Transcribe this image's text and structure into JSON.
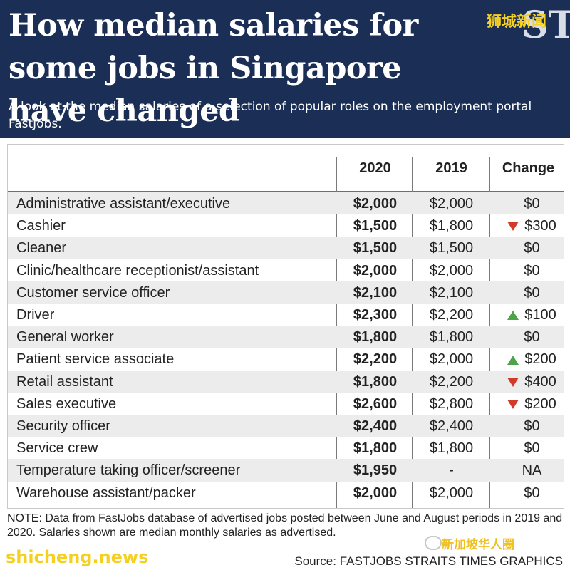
{
  "header": {
    "title": "How median salaries for some jobs in Singapore have changed",
    "subtitle": "A look at the median salaries of a selection of popular roles on the employment portal FastJobs.",
    "logo_text": "ST",
    "watermark_top": "狮城新闻",
    "background_color": "#1b2e55"
  },
  "chart_data": {
    "type": "table",
    "columns": [
      "",
      "2020",
      "2019",
      "Change"
    ],
    "rows": [
      {
        "job": "Administrative assistant/executive",
        "y2020": "$2,000",
        "y2019": "$2,000",
        "change": "$0",
        "direction": "none"
      },
      {
        "job": "Cashier",
        "y2020": "$1,500",
        "y2019": "$1,800",
        "change": "$300",
        "direction": "down"
      },
      {
        "job": "Cleaner",
        "y2020": "$1,500",
        "y2019": "$1,500",
        "change": "$0",
        "direction": "none"
      },
      {
        "job": "Clinic/healthcare receptionist/assistant",
        "y2020": "$2,000",
        "y2019": "$2,000",
        "change": "$0",
        "direction": "none"
      },
      {
        "job": "Customer service officer",
        "y2020": "$2,100",
        "y2019": "$2,100",
        "change": "$0",
        "direction": "none"
      },
      {
        "job": "Driver",
        "y2020": "$2,300",
        "y2019": "$2,200",
        "change": "$100",
        "direction": "up"
      },
      {
        "job": "General worker",
        "y2020": "$1,800",
        "y2019": "$1,800",
        "change": "$0",
        "direction": "none"
      },
      {
        "job": "Patient service associate",
        "y2020": "$2,200",
        "y2019": "$2,000",
        "change": "$200",
        "direction": "up"
      },
      {
        "job": "Retail assistant",
        "y2020": "$1,800",
        "y2019": "$2,200",
        "change": "$400",
        "direction": "down"
      },
      {
        "job": "Sales executive",
        "y2020": "$2,600",
        "y2019": "$2,800",
        "change": "$200",
        "direction": "down"
      },
      {
        "job": "Security officer",
        "y2020": "$2,400",
        "y2019": "$2,400",
        "change": "$0",
        "direction": "none"
      },
      {
        "job": "Service crew",
        "y2020": "$1,800",
        "y2019": "$1,800",
        "change": "$0",
        "direction": "none"
      },
      {
        "job": "Temperature taking officer/screener",
        "y2020": "$1,950",
        "y2019": "-",
        "change": "NA",
        "direction": "none"
      },
      {
        "job": "Warehouse assistant/packer",
        "y2020": "$2,000",
        "y2019": "$2,000",
        "change": "$0",
        "direction": "none"
      }
    ],
    "colors": {
      "up": "#4fa34a",
      "down": "#d23a2a",
      "row_shade": "#ececec"
    }
  },
  "footer": {
    "note": "NOTE: Data from FastJobs database of advertised jobs posted between June and August periods in 2019 and 2020. Salaries shown are median monthly salaries as advertised.",
    "source": "Source: FASTJOBS   STRAITS TIMES GRAPHICS",
    "watermark_left": "shicheng.news",
    "watermark_right": "新加坡华人圈"
  }
}
